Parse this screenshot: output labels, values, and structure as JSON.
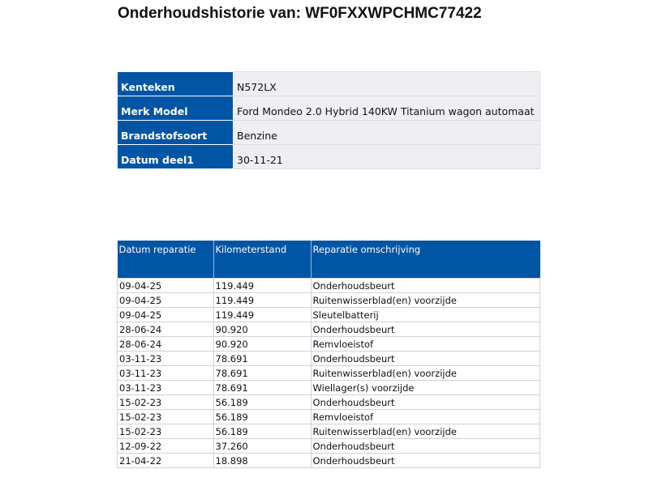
{
  "title": "Onderhoudshistorie van: WF0FXXWPCHMC77422",
  "info": [
    {
      "label": "Kenteken",
      "value": "N572LX"
    },
    {
      "label": "Merk Model",
      "value": "Ford Mondeo 2.0 Hybrid 140KW Titanium wagon automaat"
    },
    {
      "label": "Brandstofsoort",
      "value": "Benzine"
    },
    {
      "label": "Datum deel1",
      "value": "30-11-21"
    }
  ],
  "history": {
    "headers": [
      "Datum reparatie",
      "Kilometerstand",
      "Reparatie omschrijving"
    ],
    "rows": [
      [
        "09-04-25",
        "119.449",
        "Onderhoudsbeurt"
      ],
      [
        "09-04-25",
        "119.449",
        "Ruitenwisserblad(en) voorzijde"
      ],
      [
        "09-04-25",
        "119.449",
        "Sleutelbatterij"
      ],
      [
        "28-06-24",
        "90.920",
        "Onderhoudsbeurt"
      ],
      [
        "28-06-24",
        "90.920",
        "Remvloeistof"
      ],
      [
        "03-11-23",
        "78.691",
        "Onderhoudsbeurt"
      ],
      [
        "03-11-23",
        "78.691",
        "Ruitenwisserblad(en) voorzijde"
      ],
      [
        "03-11-23",
        "78.691",
        "Wiellager(s) voorzijde"
      ],
      [
        "15-02-23",
        "56.189",
        "Onderhoudsbeurt"
      ],
      [
        "15-02-23",
        "56.189",
        "Remvloeistof"
      ],
      [
        "15-02-23",
        "56.189",
        "Ruitenwisserblad(en) voorzijde"
      ],
      [
        "12-09-22",
        "37.260",
        "Onderhoudsbeurt"
      ],
      [
        "21-04-22",
        "18.898",
        "Onderhoudsbeurt"
      ]
    ]
  },
  "colors": {
    "header": "#0055a5",
    "cell": "#efeff3"
  }
}
